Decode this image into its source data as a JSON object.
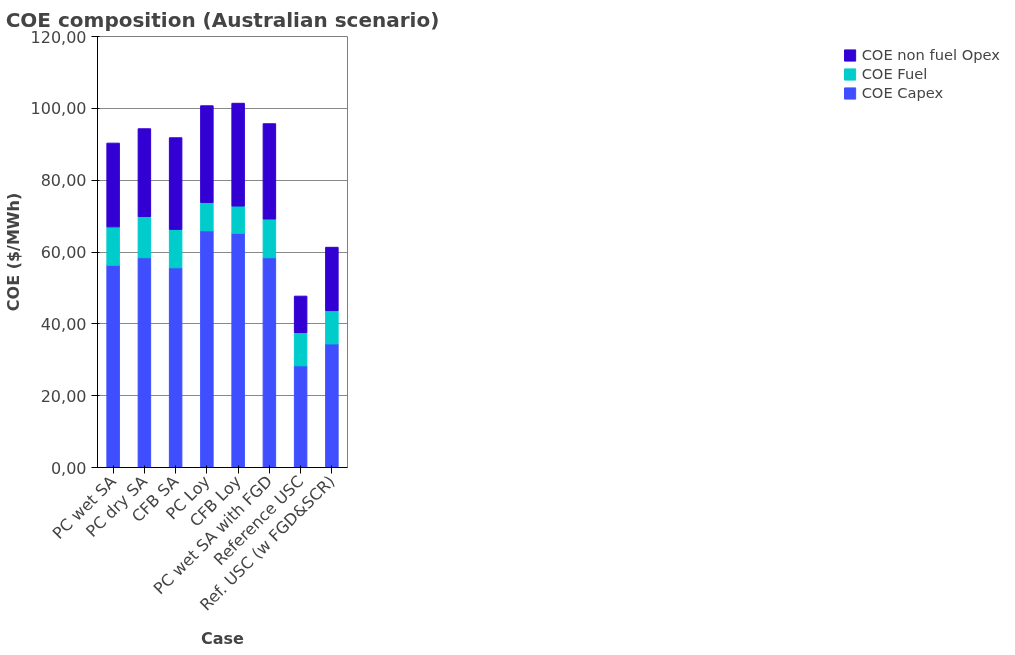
{
  "chart_data": {
    "type": "bar",
    "stacked": true,
    "title": "COE composition (Australian scenario)",
    "xlabel": "Case",
    "ylabel": "COE ($/MWh)",
    "categories": [
      "PC wet SA",
      "PC dry SA",
      "CFB SA",
      "PC Loy",
      "CFB Loy",
      "PC wet SA with FGD",
      "Reference USC",
      "Ref. USC (w FGD&SCR)"
    ],
    "series": [
      {
        "name": "COE Capex",
        "color": "#3f4fff",
        "values": [
          56.3,
          58.4,
          55.6,
          65.9,
          65.2,
          58.4,
          28.3,
          34.4
        ]
      },
      {
        "name": "COE Fuel",
        "color": "#00cccc",
        "values": [
          10.7,
          11.5,
          10.7,
          7.9,
          7.6,
          10.8,
          9.3,
          9.3
        ]
      },
      {
        "name": "COE non fuel Opex",
        "color": "#3300d4",
        "values": [
          23.3,
          24.4,
          25.5,
          26.9,
          28.6,
          26.5,
          10.1,
          17.6
        ]
      }
    ],
    "ylim": [
      0,
      120
    ],
    "yticks": [
      {
        "value": 0,
        "label": "0,00"
      },
      {
        "value": 20,
        "label": "20,00"
      },
      {
        "value": 40,
        "label": "40,00"
      },
      {
        "value": 60,
        "label": "60,00"
      },
      {
        "value": 80,
        "label": "80,00"
      },
      {
        "value": 100,
        "label": "100,00"
      },
      {
        "value": 120,
        "label": "120,00"
      }
    ],
    "grid": "y",
    "legend": "right"
  }
}
